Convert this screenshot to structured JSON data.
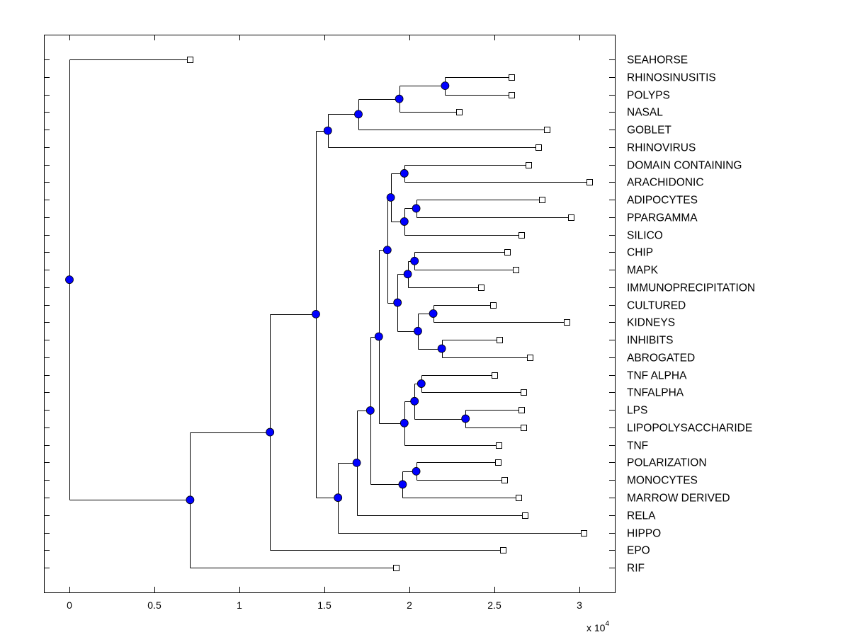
{
  "chart_data": {
    "type": "dendrogram",
    "x_ticks": [
      0,
      0.5,
      1,
      1.5,
      2,
      2.5,
      3
    ],
    "x_tick_labels": [
      "0",
      "0.5",
      "1",
      "1.5",
      "2",
      "2.5",
      "3"
    ],
    "x_multiplier_label": "x 10",
    "x_multiplier_exp": "4",
    "xlim": [
      -0.15,
      3.21
    ],
    "leaf_marker_color": "#ffffff",
    "node_marker_color": "#0000ff",
    "tree": {
      "d": 0,
      "c": [
        {
          "label": "SEAHORSE",
          "d": 0.71
        },
        {
          "d": 0.71,
          "c": [
            {
              "d": 1.18,
              "c": [
                {
                  "d": 1.45,
                  "c": [
                    {
                      "d": 1.52,
                      "c": [
                        {
                          "d": 1.7,
                          "c": [
                            {
                              "d": 1.94,
                              "c": [
                                {
                                  "d": 2.21,
                                  "c": [
                                    {
                                      "label": "RHINOSINUSITIS",
                                      "d": 2.6
                                    },
                                    {
                                      "label": "POLYPS",
                                      "d": 2.6
                                    }
                                  ]
                                },
                                {
                                  "label": "NASAL",
                                  "d": 2.29
                                }
                              ]
                            },
                            {
                              "label": "GOBLET",
                              "d": 2.81
                            }
                          ]
                        },
                        {
                          "label": "RHINOVIRUS",
                          "d": 2.76
                        }
                      ]
                    },
                    {
                      "d": 1.58,
                      "c": [
                        {
                          "d": 1.69,
                          "c": [
                            {
                              "d": 1.77,
                              "c": [
                                {
                                  "d": 1.82,
                                  "c": [
                                    {
                                      "d": 1.87,
                                      "c": [
                                        {
                                          "d": 1.89,
                                          "c": [
                                            {
                                              "d": 1.97,
                                              "c": [
                                                {
                                                  "label": "DOMAIN CONTAINING",
                                                  "d": 2.7
                                                },
                                                {
                                                  "label": "ARACHIDONIC",
                                                  "d": 3.06
                                                }
                                              ]
                                            },
                                            {
                                              "d": 1.97,
                                              "c": [
                                                {
                                                  "d": 2.04,
                                                  "c": [
                                                    {
                                                      "label": "ADIPOCYTES",
                                                      "d": 2.78
                                                    },
                                                    {
                                                      "label": "PPARGAMMA",
                                                      "d": 2.95
                                                    }
                                                  ]
                                                },
                                                {
                                                  "label": "SILICO",
                                                  "d": 2.66
                                                }
                                              ]
                                            }
                                          ]
                                        },
                                        {
                                          "d": 1.93,
                                          "c": [
                                            {
                                              "d": 1.99,
                                              "c": [
                                                {
                                                  "d": 2.03,
                                                  "c": [
                                                    {
                                                      "label": "CHIP",
                                                      "d": 2.575
                                                    },
                                                    {
                                                      "label": "MAPK",
                                                      "d": 2.625
                                                    }
                                                  ]
                                                },
                                                {
                                                  "label": "IMMUNOPRECIPITATION",
                                                  "d": 2.42
                                                }
                                              ]
                                            },
                                            {
                                              "d": 2.05,
                                              "c": [
                                                {
                                                  "d": 2.14,
                                                  "c": [
                                                    {
                                                      "label": "CULTURED",
                                                      "d": 2.49
                                                    },
                                                    {
                                                      "label": "KIDNEYS",
                                                      "d": 2.925
                                                    }
                                                  ]
                                                },
                                                {
                                                  "d": 2.19,
                                                  "c": [
                                                    {
                                                      "label": "INHIBITS",
                                                      "d": 2.53
                                                    },
                                                    {
                                                      "label": "ABROGATED",
                                                      "d": 2.71
                                                    }
                                                  ]
                                                }
                                              ]
                                            }
                                          ]
                                        }
                                      ]
                                    },
                                    {
                                      "d": 1.97,
                                      "c": [
                                        {
                                          "d": 2.03,
                                          "c": [
                                            {
                                              "d": 2.07,
                                              "c": [
                                                {
                                                  "label": "TNF ALPHA",
                                                  "d": 2.5
                                                },
                                                {
                                                  "label": "TNFALPHA",
                                                  "d": 2.67
                                                }
                                              ]
                                            },
                                            {
                                              "d": 2.33,
                                              "c": [
                                                {
                                                  "label": "LPS",
                                                  "d": 2.66
                                                },
                                                {
                                                  "label": "LIPOPOLYSACCHARIDE",
                                                  "d": 2.67
                                                }
                                              ]
                                            }
                                          ]
                                        },
                                        {
                                          "label": "TNF",
                                          "d": 2.525
                                        }
                                      ]
                                    }
                                  ]
                                },
                                {
                                  "d": 1.96,
                                  "c": [
                                    {
                                      "d": 2.04,
                                      "c": [
                                        {
                                          "label": "POLARIZATION",
                                          "d": 2.52
                                        },
                                        {
                                          "label": "MONOCYTES",
                                          "d": 2.56
                                        }
                                      ]
                                    },
                                    {
                                      "label": "MARROW DERIVED",
                                      "d": 2.64
                                    }
                                  ]
                                }
                              ]
                            },
                            {
                              "label": "RELA",
                              "d": 2.68
                            }
                          ]
                        },
                        {
                          "label": "HIPPO",
                          "d": 3.025
                        }
                      ]
                    }
                  ]
                },
                {
                  "label": "EPO",
                  "d": 2.55
                }
              ]
            },
            {
              "label": "RIF",
              "d": 1.92
            }
          ]
        }
      ]
    }
  }
}
